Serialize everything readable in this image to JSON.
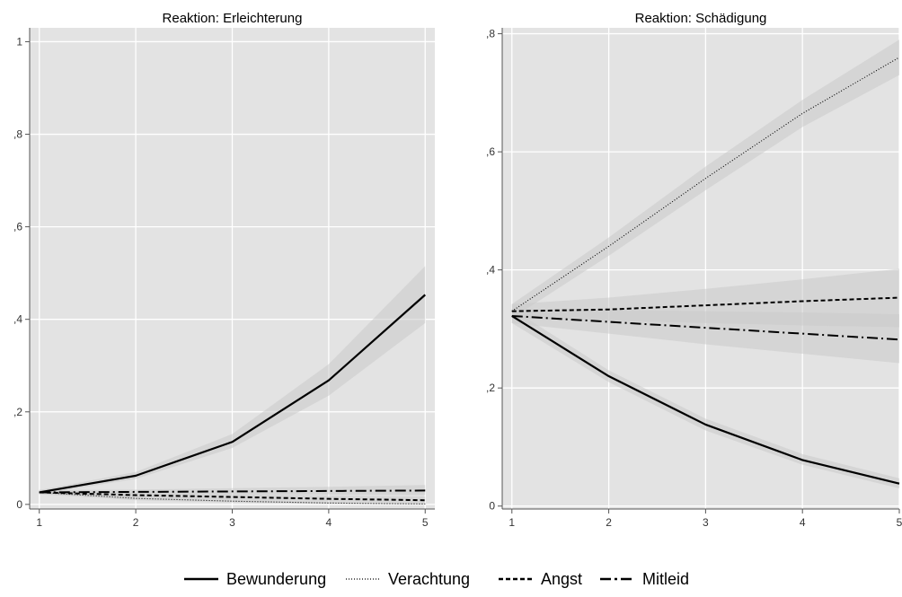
{
  "chart_data": [
    {
      "type": "line",
      "title": "Reaktion: Erleichterung",
      "xlabel": "",
      "ylabel": "",
      "x": [
        1,
        2,
        3,
        4,
        5
      ],
      "xlim": [
        0.9,
        5.1
      ],
      "ylim": [
        -0.01,
        1.03
      ],
      "yticks": [
        0,
        0.2,
        0.4,
        0.6,
        0.8,
        1
      ],
      "ytick_labels": [
        "0",
        ",2",
        ",4",
        ",6",
        ",8",
        "1"
      ],
      "xtick_labels": [
        "1",
        "2",
        "3",
        "4",
        "5"
      ],
      "grid": true,
      "series": [
        {
          "name": "Bewunderung",
          "values": [
            0.026,
            0.062,
            0.135,
            0.268,
            0.453
          ],
          "lower": [
            0.022,
            0.055,
            0.122,
            0.235,
            0.392
          ],
          "upper": [
            0.031,
            0.07,
            0.152,
            0.303,
            0.515
          ]
        },
        {
          "name": "Verachtung",
          "values": [
            0.026,
            0.013,
            0.007,
            0.003,
            0.001
          ],
          "lower": [
            0.022,
            0.009,
            0.004,
            0.001,
            0.0
          ],
          "upper": [
            0.031,
            0.018,
            0.011,
            0.006,
            0.003
          ]
        },
        {
          "name": "Angst",
          "values": [
            0.026,
            0.02,
            0.016,
            0.012,
            0.009
          ],
          "lower": [
            0.022,
            0.016,
            0.011,
            0.007,
            0.004
          ],
          "upper": [
            0.031,
            0.025,
            0.022,
            0.019,
            0.017
          ]
        },
        {
          "name": "Mitleid",
          "values": [
            0.026,
            0.027,
            0.028,
            0.029,
            0.03
          ],
          "lower": [
            0.022,
            0.023,
            0.022,
            0.021,
            0.02
          ],
          "upper": [
            0.031,
            0.032,
            0.035,
            0.038,
            0.042
          ]
        }
      ]
    },
    {
      "type": "line",
      "title": "Reaktion: Schädigung",
      "xlabel": "",
      "ylabel": "",
      "x": [
        1,
        2,
        3,
        4,
        5
      ],
      "xlim": [
        0.9,
        5.0
      ],
      "ylim": [
        -0.005,
        0.81
      ],
      "yticks": [
        0,
        0.2,
        0.4,
        0.6,
        0.8
      ],
      "ytick_labels": [
        "0",
        ",2",
        ",4",
        ",6",
        ",8"
      ],
      "xtick_labels": [
        "1",
        "2",
        "3",
        "4",
        "5"
      ],
      "grid": true,
      "series": [
        {
          "name": "Bewunderung",
          "values": [
            0.322,
            0.22,
            0.138,
            0.078,
            0.038
          ],
          "lower": [
            0.31,
            0.21,
            0.128,
            0.07,
            0.03
          ],
          "upper": [
            0.334,
            0.23,
            0.148,
            0.088,
            0.047
          ]
        },
        {
          "name": "Verachtung",
          "values": [
            0.33,
            0.44,
            0.555,
            0.665,
            0.76
          ],
          "lower": [
            0.318,
            0.424,
            0.535,
            0.642,
            0.73
          ],
          "upper": [
            0.342,
            0.455,
            0.575,
            0.688,
            0.79
          ]
        },
        {
          "name": "Angst",
          "values": [
            0.33,
            0.333,
            0.34,
            0.347,
            0.353
          ],
          "lower": [
            0.318,
            0.314,
            0.31,
            0.306,
            0.303
          ],
          "upper": [
            0.342,
            0.353,
            0.368,
            0.384,
            0.402
          ]
        },
        {
          "name": "Mitleid",
          "values": [
            0.322,
            0.312,
            0.302,
            0.292,
            0.282
          ],
          "lower": [
            0.31,
            0.292,
            0.274,
            0.258,
            0.242
          ],
          "upper": [
            0.334,
            0.332,
            0.33,
            0.328,
            0.325
          ]
        }
      ]
    }
  ],
  "legend": {
    "placement": "bottom",
    "entries": [
      "Bewunderung",
      "Verachtung",
      "Angst",
      "Mitleid"
    ]
  },
  "colors": {
    "plot_background": "#e3e3e3",
    "grid": "#ffffff",
    "line": "#000000",
    "band": "#cacaca",
    "axis": "#555555"
  }
}
